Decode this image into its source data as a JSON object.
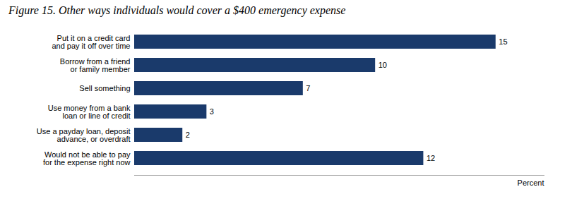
{
  "chart_data": {
    "type": "bar",
    "orientation": "horizontal",
    "title": "Figure 15. Other ways individuals would cover a $400 emergency expense",
    "categories": [
      "Would not be able to pay\nfor the expense right now",
      "Use a payday loan, deposit\nadvance, or overdraft",
      "Use money from a bank\nloan or line of credit",
      "Sell something",
      "Borrow from a friend\nor family member",
      "Put it on a credit card\nand pay it off over time"
    ],
    "values": [
      12,
      2,
      3,
      7,
      10,
      15
    ],
    "color": "#1a3a6b",
    "xlabel": "Percent",
    "xlim": [
      0,
      17
    ],
    "data_labels": true,
    "tick_labels": "y",
    "grid": false
  }
}
